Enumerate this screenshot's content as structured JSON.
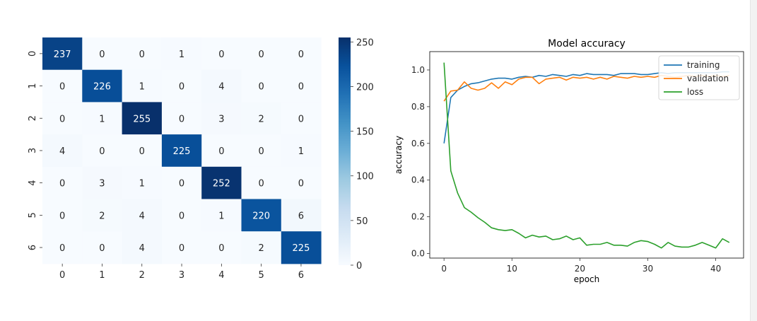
{
  "chart_data": [
    {
      "type": "heatmap",
      "row_labels": [
        "0",
        "1",
        "2",
        "3",
        "4",
        "5",
        "6"
      ],
      "col_labels": [
        "0",
        "1",
        "2",
        "3",
        "4",
        "5",
        "6"
      ],
      "values": [
        [
          237,
          0,
          0,
          1,
          0,
          0,
          0
        ],
        [
          0,
          226,
          1,
          0,
          4,
          0,
          0
        ],
        [
          0,
          1,
          255,
          0,
          3,
          2,
          0
        ],
        [
          4,
          0,
          0,
          225,
          0,
          0,
          1
        ],
        [
          0,
          3,
          1,
          0,
          252,
          0,
          0
        ],
        [
          0,
          2,
          4,
          0,
          1,
          220,
          6
        ],
        [
          0,
          0,
          4,
          0,
          0,
          2,
          225
        ]
      ],
      "colormap": "Blues",
      "colorbar": {
        "vmin": 0,
        "vmax": 255,
        "ticks": [
          0,
          50,
          100,
          150,
          200,
          250
        ]
      },
      "annotated": true
    },
    {
      "type": "line",
      "title": "Model accuracy",
      "xlabel": "epoch",
      "ylabel": "accuracy",
      "xlim": [
        -2.1,
        44.1
      ],
      "ylim": [
        -0.025,
        1.1
      ],
      "xticks": [
        0,
        10,
        20,
        30,
        40
      ],
      "yticks": [
        0.0,
        0.2,
        0.4,
        0.6,
        0.8,
        1.0
      ],
      "x": [
        0,
        1,
        2,
        3,
        4,
        5,
        6,
        7,
        8,
        9,
        10,
        11,
        12,
        13,
        14,
        15,
        16,
        17,
        18,
        19,
        20,
        21,
        22,
        23,
        24,
        25,
        26,
        27,
        28,
        29,
        30,
        31,
        32,
        33,
        34,
        35,
        36,
        37,
        38,
        39,
        40,
        41,
        42
      ],
      "series": [
        {
          "name": "training",
          "color": "#1f77b4",
          "values": [
            0.6,
            0.85,
            0.89,
            0.91,
            0.925,
            0.93,
            0.94,
            0.95,
            0.955,
            0.955,
            0.95,
            0.96,
            0.965,
            0.96,
            0.97,
            0.965,
            0.975,
            0.97,
            0.965,
            0.975,
            0.97,
            0.98,
            0.975,
            0.975,
            0.975,
            0.97,
            0.98,
            0.98,
            0.98,
            0.975,
            0.975,
            0.98,
            0.985,
            0.98,
            0.985,
            0.985,
            0.985,
            0.985,
            0.985,
            0.985,
            0.985,
            0.99,
            0.99
          ]
        },
        {
          "name": "validation",
          "color": "#ff7f0e",
          "values": [
            0.83,
            0.885,
            0.89,
            0.935,
            0.9,
            0.89,
            0.9,
            0.93,
            0.9,
            0.935,
            0.92,
            0.95,
            0.96,
            0.96,
            0.925,
            0.95,
            0.955,
            0.96,
            0.945,
            0.96,
            0.955,
            0.96,
            0.95,
            0.96,
            0.95,
            0.965,
            0.96,
            0.955,
            0.965,
            0.96,
            0.965,
            0.96,
            0.97,
            0.965,
            0.96,
            0.965,
            0.97,
            0.965,
            0.97,
            0.965,
            0.97,
            0.965,
            0.97
          ]
        },
        {
          "name": "loss",
          "color": "#2ca02c",
          "values": [
            1.04,
            0.45,
            0.33,
            0.25,
            0.225,
            0.195,
            0.17,
            0.14,
            0.13,
            0.125,
            0.13,
            0.11,
            0.085,
            0.1,
            0.09,
            0.095,
            0.075,
            0.08,
            0.095,
            0.075,
            0.085,
            0.045,
            0.05,
            0.05,
            0.06,
            0.045,
            0.045,
            0.04,
            0.06,
            0.07,
            0.065,
            0.05,
            0.03,
            0.06,
            0.04,
            0.035,
            0.035,
            0.045,
            0.06,
            0.045,
            0.03,
            0.08,
            0.06
          ]
        }
      ],
      "legend": {
        "position": "top-right",
        "entries": [
          "training",
          "validation",
          "loss"
        ]
      },
      "grid": false
    }
  ]
}
